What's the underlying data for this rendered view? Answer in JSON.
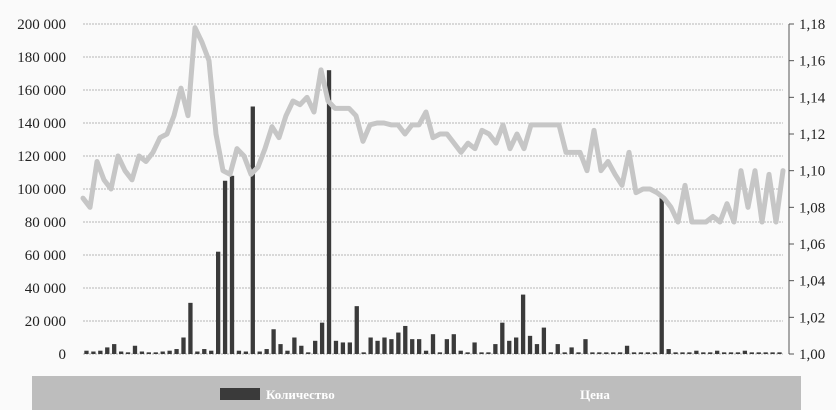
{
  "chart_data": {
    "type": "bar+line",
    "title": "",
    "xlabel": "",
    "ylabel": "",
    "ylim": [
      0,
      200000
    ],
    "y2lim": [
      1.0,
      1.18
    ],
    "y_ticks": [
      "0",
      "20 000",
      "40 000",
      "60 000",
      "80 000",
      "100 000",
      "120 000",
      "140 000",
      "160 000",
      "180 000",
      "200 000"
    ],
    "y2_ticks": [
      "1,00",
      "1,02",
      "1,04",
      "1,06",
      "1,08",
      "1,10",
      "1,12",
      "1,14",
      "1,16",
      "1,18"
    ],
    "grid": true,
    "legend_position": "bottom",
    "colors": {
      "bars": "#3a3a3a",
      "line": "#c6c6c6",
      "legend_band": "#bdbdbd",
      "grid": "#b5b5b5"
    },
    "series": [
      {
        "name": "Количество",
        "type": "bar",
        "axis": "left",
        "values": [
          2000,
          1500,
          2000,
          4000,
          6000,
          1500,
          1000,
          5000,
          1500,
          1000,
          1000,
          1500,
          2000,
          3000,
          10000,
          31000,
          1500,
          3000,
          2000,
          62000,
          105000,
          108000,
          2000,
          1500,
          150000,
          1500,
          3000,
          15000,
          6000,
          2000,
          10000,
          5000,
          1000,
          8000,
          19000,
          172000,
          8000,
          7000,
          7000,
          29000,
          1000,
          10000,
          8000,
          10000,
          9000,
          13000,
          17000,
          9000,
          9000,
          2000,
          12000,
          1000,
          9000,
          12000,
          2000,
          1000,
          7000,
          1000,
          1000,
          6000,
          19000,
          8000,
          10000,
          36000,
          11000,
          6000,
          16000,
          1000,
          6000,
          1000,
          4000,
          1000,
          9000,
          1000,
          1000,
          1000,
          1000,
          1000,
          5000,
          1000,
          1000,
          1000,
          1000,
          96000,
          3000,
          1000,
          1000,
          1000,
          2000,
          1000,
          1000,
          2000,
          1000,
          1000,
          1000,
          2000,
          1000,
          1000,
          1000,
          1000,
          1000
        ]
      },
      {
        "name": "Цена",
        "type": "line",
        "axis": "right",
        "values": [
          1.085,
          1.08,
          1.105,
          1.095,
          1.09,
          1.108,
          1.1,
          1.095,
          1.108,
          1.105,
          1.11,
          1.118,
          1.12,
          1.13,
          1.145,
          1.13,
          1.178,
          1.17,
          1.16,
          1.12,
          1.1,
          1.098,
          1.112,
          1.108,
          1.098,
          1.102,
          1.112,
          1.124,
          1.118,
          1.13,
          1.138,
          1.136,
          1.14,
          1.132,
          1.155,
          1.138,
          1.134,
          1.134,
          1.134,
          1.13,
          1.116,
          1.125,
          1.126,
          1.126,
          1.125,
          1.125,
          1.12,
          1.125,
          1.125,
          1.132,
          1.118,
          1.12,
          1.12,
          1.115,
          1.11,
          1.115,
          1.112,
          1.122,
          1.12,
          1.115,
          1.125,
          1.112,
          1.12,
          1.112,
          1.125,
          1.125,
          1.125,
          1.125,
          1.125,
          1.11,
          1.11,
          1.11,
          1.1,
          1.122,
          1.1,
          1.105,
          1.098,
          1.092,
          1.11,
          1.088,
          1.09,
          1.09,
          1.088,
          1.085,
          1.08,
          1.072,
          1.092,
          1.072,
          1.072,
          1.072,
          1.075,
          1.072,
          1.082,
          1.072,
          1.1,
          1.08,
          1.1,
          1.072,
          1.098,
          1.072,
          1.1
        ]
      }
    ]
  }
}
